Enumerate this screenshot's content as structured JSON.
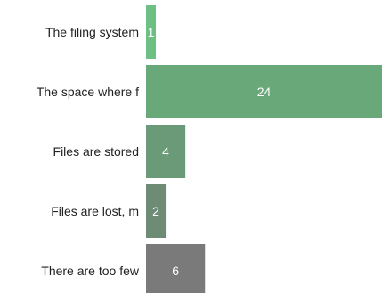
{
  "chart_data": {
    "type": "bar",
    "orientation": "horizontal",
    "categories": [
      "The filing system",
      "The space where f",
      "Files are stored",
      "Files are lost, m",
      "There are too few"
    ],
    "values": [
      1,
      24,
      4,
      2,
      6
    ],
    "data_labels": [
      "1",
      "24",
      "4",
      "2",
      "6"
    ],
    "bar_colors": [
      "#6dbf84",
      "#69a979",
      "#6b9a78",
      "#6e8b76",
      "#7a7a7a"
    ],
    "title": "",
    "xlabel": "",
    "ylabel": "",
    "xlim": [
      0,
      24
    ],
    "grid": false,
    "legend": "none"
  }
}
